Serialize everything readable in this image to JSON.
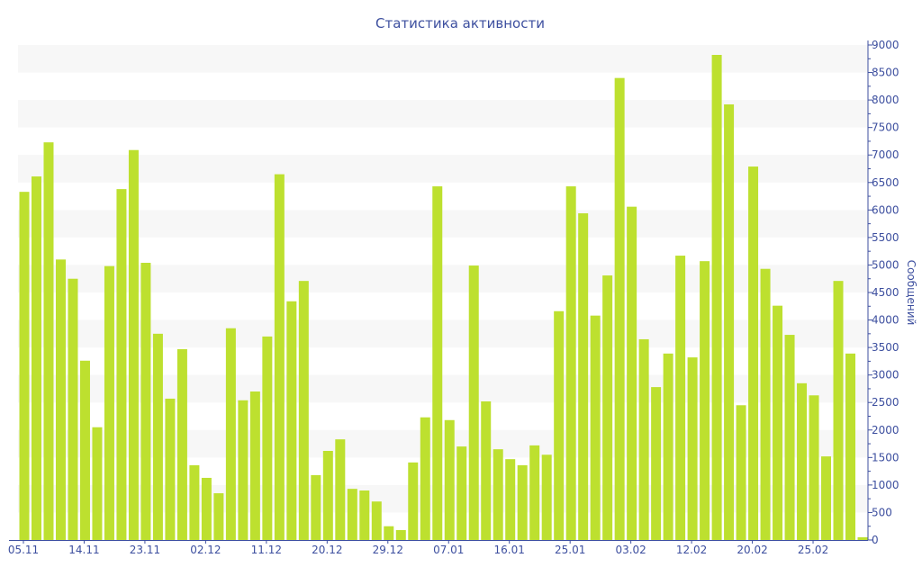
{
  "chart_data": {
    "type": "bar",
    "title": "Статистика активности",
    "xlabel": "",
    "ylabel": "Сообщений",
    "ylim": [
      0,
      9000
    ],
    "ytick_step": 500,
    "grid": "alternating horizontal bands",
    "bar_color": "#bde02f",
    "text_color": "#3d4f9f",
    "x_tick_labels": [
      {
        "index": 0,
        "label": "05.11"
      },
      {
        "index": 5,
        "label": "14.11"
      },
      {
        "index": 10,
        "label": "23.11"
      },
      {
        "index": 15,
        "label": "02.12"
      },
      {
        "index": 20,
        "label": "11.12"
      },
      {
        "index": 25,
        "label": "20.12"
      },
      {
        "index": 30,
        "label": "29.12"
      },
      {
        "index": 35,
        "label": "07.01"
      },
      {
        "index": 40,
        "label": "16.01"
      },
      {
        "index": 45,
        "label": "25.01"
      },
      {
        "index": 50,
        "label": "03.02"
      },
      {
        "index": 55,
        "label": "12.02"
      },
      {
        "index": 60,
        "label": "20.02"
      },
      {
        "index": 65,
        "label": "25.02"
      }
    ],
    "values": [
      6330,
      6610,
      7230,
      5100,
      4750,
      3260,
      2050,
      4980,
      6380,
      7090,
      5040,
      3750,
      2570,
      3470,
      1360,
      1130,
      850,
      3850,
      2540,
      2700,
      3700,
      6650,
      4340,
      4710,
      1180,
      1620,
      1830,
      930,
      900,
      700,
      250,
      180,
      1410,
      2230,
      6430,
      2180,
      1700,
      4990,
      2520,
      1650,
      1470,
      1360,
      1720,
      1550,
      4160,
      6430,
      5940,
      4080,
      4810,
      8400,
      6060,
      3650,
      2780,
      3390,
      5170,
      3320,
      5070,
      8820,
      7920,
      2450,
      6790,
      4930,
      4260,
      3730,
      2850,
      2630,
      1520,
      4710,
      3390,
      50
    ]
  }
}
